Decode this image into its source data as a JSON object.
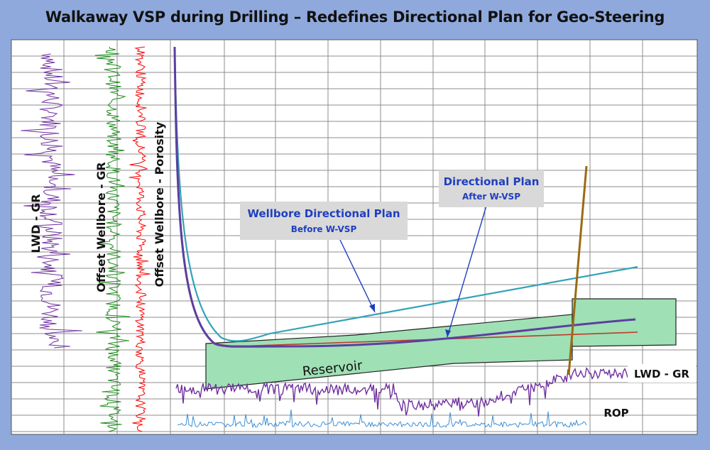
{
  "title": "Walkaway VSP during Drilling –  Redefines Directional Plan for Geo-Steering",
  "labels": {
    "lwd_gr_vertical": "LWD - GR",
    "offset_gr": "Offset Wellbore - GR",
    "offset_porosity": "Offset Wellbore - Porosity",
    "before_plan_title": "Wellbore Directional Plan",
    "before_plan_sub": "Before W-VSP",
    "after_plan_title": "Directional Plan",
    "after_plan_sub": "After W-VSP",
    "reservoir": "Reservoir",
    "lwd_gr_right": "LWD - GR",
    "rop": "ROP"
  },
  "colors": {
    "background": "#8fa9dc",
    "plot_bg": "#ffffff",
    "grid": "#8c8c8c",
    "lwd_gr": "#7030a0",
    "offset_gr": "#1a8a1a",
    "offset_porosity": "#ff0000",
    "before_plan": "#31a3b8",
    "after_plan": "#5b3fa0",
    "actual_red": "#c0392b",
    "reservoir_fill": "#9fe0b5",
    "vertical_well": "#9a6a12",
    "rop": "#3d8fd6",
    "callout_bg": "#d9d9d9",
    "callout_text": "#1f3fbf"
  }
}
